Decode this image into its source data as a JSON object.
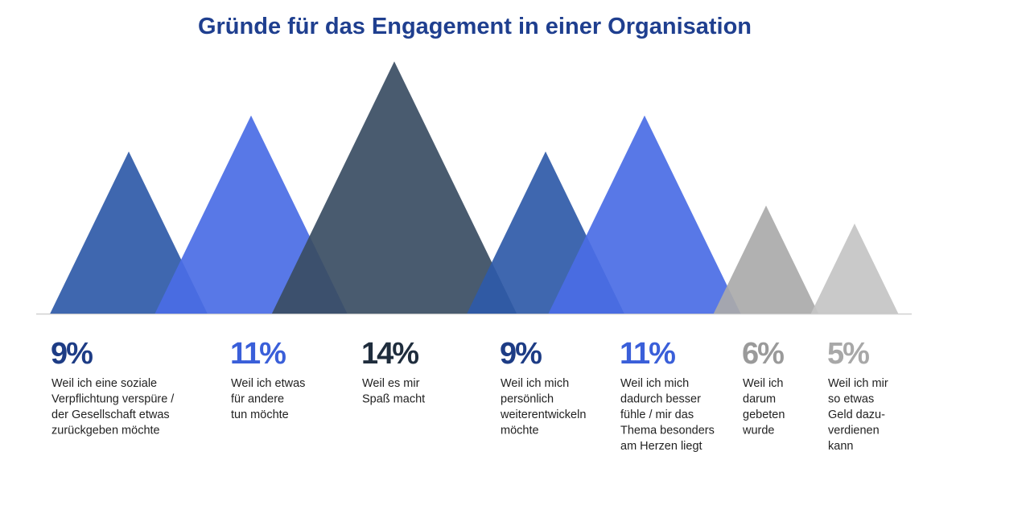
{
  "chart_data": {
    "type": "mountain",
    "title": "Gründe für das Engagement in einer Organisation",
    "categories": [
      [
        "Weil ich eine soziale",
        "Verpflichtung verspüre /",
        "der Gesellschaft etwas",
        "zurückgeben möchte"
      ],
      [
        "Weil ich etwas",
        "für andere",
        "tun möchte"
      ],
      [
        "Weil es mir",
        "Spaß macht"
      ],
      [
        "Weil ich mich",
        "persönlich",
        "weiterentwickeln",
        "möchte"
      ],
      [
        "Weil ich mich",
        "dadurch besser",
        "fühle / mir das",
        "Thema besonders",
        "am Herzen liegt"
      ],
      [
        "Weil ich",
        "darum",
        "gebeten",
        "wurde"
      ],
      [
        "Weil ich mir",
        "so etwas",
        "Geld dazu-",
        "verdienen",
        "kann"
      ]
    ],
    "values": [
      9,
      11,
      14,
      9,
      11,
      6,
      5
    ],
    "value_labels": [
      "9%",
      "11%",
      "14%",
      "9%",
      "11%",
      "6%",
      "5%"
    ],
    "colors": [
      "#2f5aa8",
      "#4a6de5",
      "#3a4d63",
      "#2f5aa8",
      "#4a6de5",
      "#aaaaaa",
      "#c4c4c4"
    ],
    "label_colors": [
      "#1d3c85",
      "#3a5fd9",
      "#1f2d3d",
      "#1d3c85",
      "#3a5fd9",
      "#9a9a9a",
      "#a8a8a8"
    ]
  }
}
